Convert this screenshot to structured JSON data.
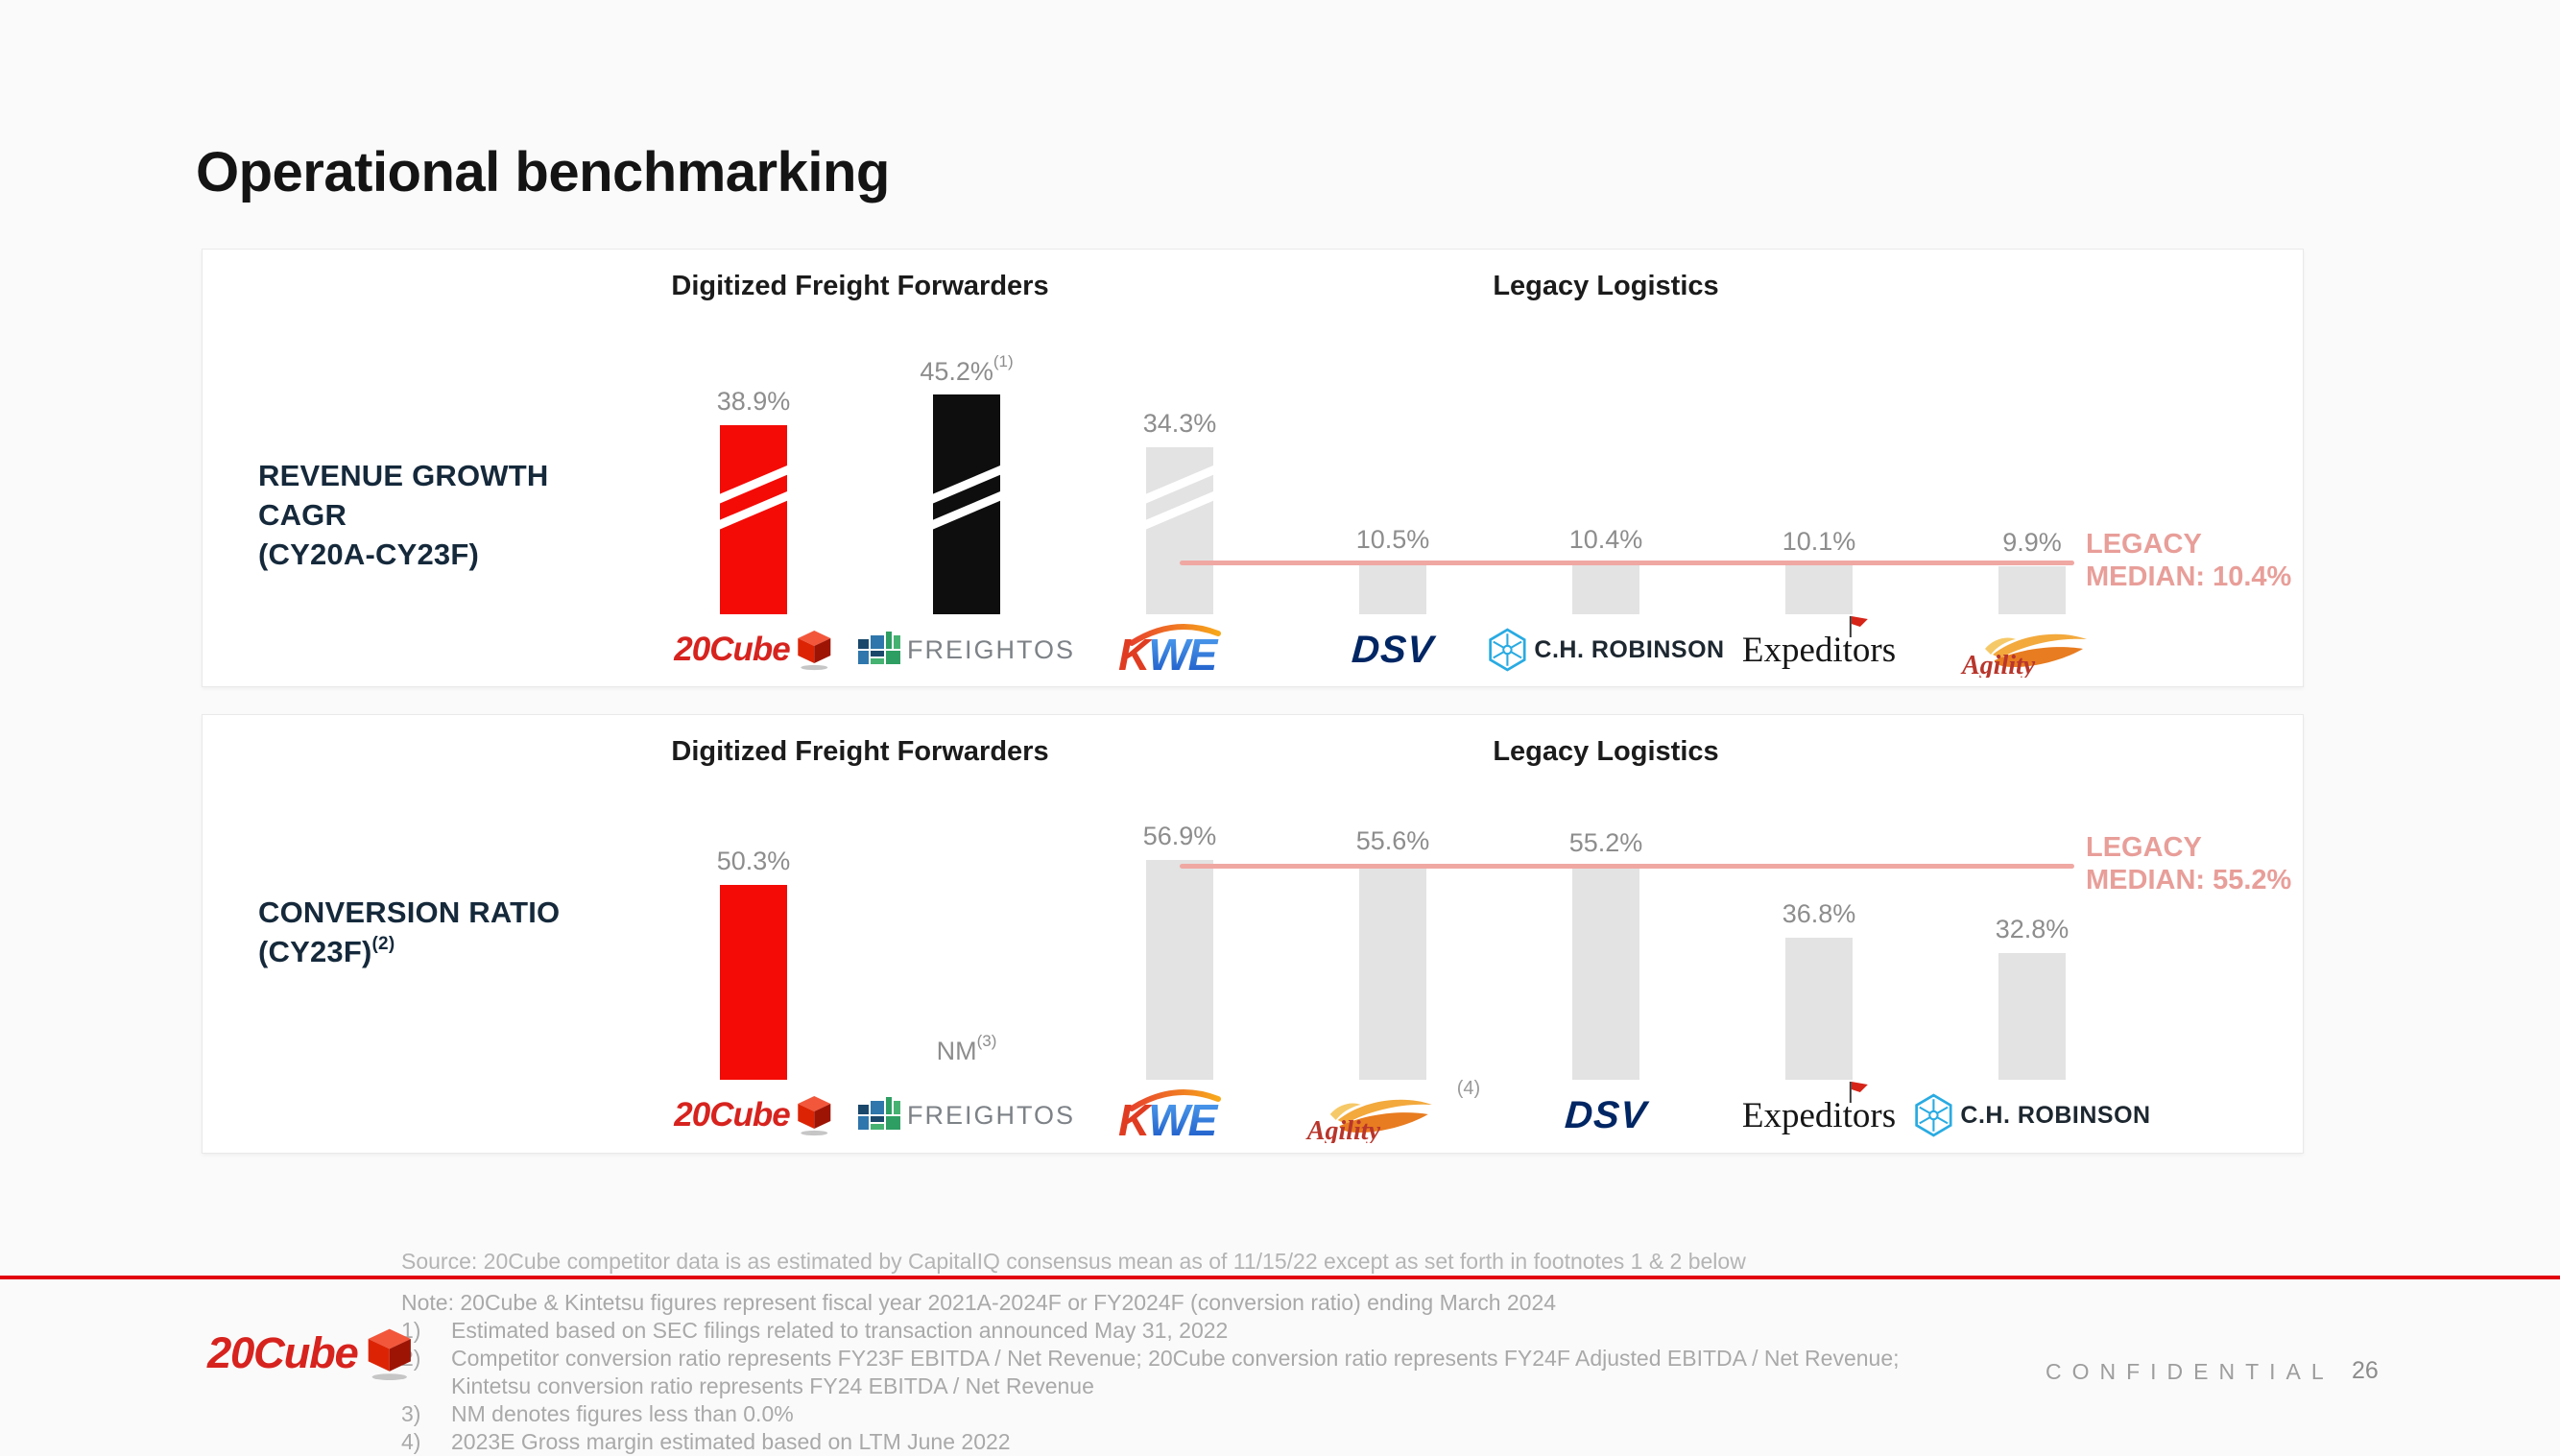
{
  "slide": {
    "title": "Operational benchmarking"
  },
  "colors": {
    "bar_red": "#f40b06",
    "bar_black": "#0e0e0e",
    "bar_gray": "#e3e3e3",
    "median_salmon": "#f0a8a3",
    "median_text": "#e89e99",
    "divider_red": "#e3000e",
    "label_navy": "#15293b"
  },
  "chart_data": [
    {
      "type": "bar",
      "title": "Revenue Growth CAGR (CY20A-CY23F)",
      "unit": "%",
      "row_label_lines": [
        {
          "text": "REVENUE GROWTH",
          "sup": ""
        },
        {
          "text": "CAGR",
          "sup": ""
        },
        {
          "text": "(CY20A-CY23F)",
          "sup": ""
        }
      ],
      "groups": [
        {
          "label": "Digitized Freight Forwarders",
          "from": 0,
          "to": 1
        },
        {
          "label": "Legacy Logistics",
          "from": 2,
          "to": 6
        }
      ],
      "bars": [
        {
          "company": "20Cube",
          "value": 38.9,
          "label": "38.9%",
          "sup": "",
          "style": "red",
          "striped": true,
          "logo": {
            "icon": "20cube",
            "text": "20Cube",
            "sup": ""
          }
        },
        {
          "company": "Freightos",
          "value": 45.2,
          "label": "45.2%",
          "sup": "(1)",
          "style": "black",
          "striped": true,
          "logo": {
            "icon": "freightos",
            "text": "FREIGHTOS",
            "sup": ""
          }
        },
        {
          "company": "Kintetsu World Express",
          "value": 34.3,
          "label": "34.3%",
          "sup": "",
          "style": "gray",
          "striped": true,
          "logo": {
            "icon": "kwe",
            "text": "KWE",
            "sup": ""
          }
        },
        {
          "company": "DSV",
          "value": 10.5,
          "label": "10.5%",
          "sup": "",
          "style": "gray",
          "striped": false,
          "logo": {
            "icon": "dsv",
            "text": "DSV",
            "sup": ""
          }
        },
        {
          "company": "C.H. Robinson",
          "value": 10.4,
          "label": "10.4%",
          "sup": "",
          "style": "gray",
          "striped": false,
          "logo": {
            "icon": "chrobinson",
            "text": "C.H. ROBINSON",
            "sup": ""
          }
        },
        {
          "company": "Expeditors",
          "value": 10.1,
          "label": "10.1%",
          "sup": "",
          "style": "gray",
          "striped": false,
          "logo": {
            "icon": "expeditors",
            "text": "Expeditors",
            "sup": ""
          }
        },
        {
          "company": "Agility",
          "value": 9.9,
          "label": "9.9%",
          "sup": "",
          "style": "gray",
          "striped": false,
          "logo": {
            "icon": "agility",
            "text": "Agility",
            "sup": ""
          }
        }
      ],
      "median_line": {
        "label_line1": "LEGACY",
        "label_line2": "MEDIAN: 10.4%",
        "value": 10.4
      }
    },
    {
      "type": "bar",
      "title": "Conversion Ratio (CY23F)",
      "unit": "%",
      "row_label_lines": [
        {
          "text": "CONVERSION RATIO",
          "sup": ""
        },
        {
          "text": "(CY23F)",
          "sup": "(2)"
        }
      ],
      "groups": [
        {
          "label": "Digitized Freight Forwarders",
          "from": 0,
          "to": 1
        },
        {
          "label": "Legacy Logistics",
          "from": 2,
          "to": 6
        }
      ],
      "bars": [
        {
          "company": "20Cube",
          "value": 50.3,
          "label": "50.3%",
          "sup": "",
          "style": "red",
          "striped": false,
          "logo": {
            "icon": "20cube",
            "text": "20Cube",
            "sup": ""
          }
        },
        {
          "company": "Freightos",
          "value": null,
          "label": "NM",
          "sup": "(3)",
          "style": "gray",
          "striped": false,
          "logo": {
            "icon": "freightos",
            "text": "FREIGHTOS",
            "sup": ""
          }
        },
        {
          "company": "Kintetsu World Express",
          "value": 56.9,
          "label": "56.9%",
          "sup": "",
          "style": "gray",
          "striped": false,
          "logo": {
            "icon": "kwe",
            "text": "KWE",
            "sup": ""
          }
        },
        {
          "company": "Agility",
          "value": 55.6,
          "label": "55.6%",
          "sup": "",
          "style": "gray",
          "striped": false,
          "logo": {
            "icon": "agility",
            "text": "Agility",
            "sup": "(4)"
          }
        },
        {
          "company": "DSV",
          "value": 55.2,
          "label": "55.2%",
          "sup": "",
          "style": "gray",
          "striped": false,
          "logo": {
            "icon": "dsv",
            "text": "DSV",
            "sup": ""
          }
        },
        {
          "company": "Expeditors",
          "value": 36.8,
          "label": "36.8%",
          "sup": "",
          "style": "gray",
          "striped": false,
          "logo": {
            "icon": "expeditors",
            "text": "Expeditors",
            "sup": ""
          }
        },
        {
          "company": "C.H. Robinson",
          "value": 32.8,
          "label": "32.8%",
          "sup": "",
          "style": "gray",
          "striped": false,
          "logo": {
            "icon": "chrobinson",
            "text": "C.H. ROBINSON",
            "sup": ""
          }
        }
      ],
      "median_line": {
        "label_line1": "LEGACY",
        "label_line2": "MEDIAN: 55.2%",
        "value": 55.2
      }
    }
  ],
  "footer": {
    "source": "Source: 20Cube competitor data is as estimated by CapitalIQ consensus mean as of 11/15/22 except as set forth in footnotes 1 & 2 below",
    "note": "Note: 20Cube & Kintetsu figures represent fiscal year 2021A-2024F or FY2024F (conversion ratio) ending March 2024",
    "footnotes": [
      {
        "num": "1)",
        "lines": [
          "Estimated based on SEC filings related to transaction announced May 31, 2022"
        ]
      },
      {
        "num": "2)",
        "lines": [
          "Competitor conversion ratio represents FY23F EBITDA / Net Revenue; 20Cube conversion ratio represents FY24F Adjusted EBITDA / Net Revenue;",
          "Kintetsu conversion ratio represents FY24 EBITDA / Net Revenue"
        ]
      },
      {
        "num": "3)",
        "lines": [
          "NM denotes figures less than 0.0%"
        ]
      },
      {
        "num": "4)",
        "lines": [
          "2023E Gross margin estimated based on LTM June 2022"
        ]
      }
    ],
    "brand_text": "20Cube",
    "confidential": "CONFIDENTIAL",
    "page_number": "26"
  }
}
